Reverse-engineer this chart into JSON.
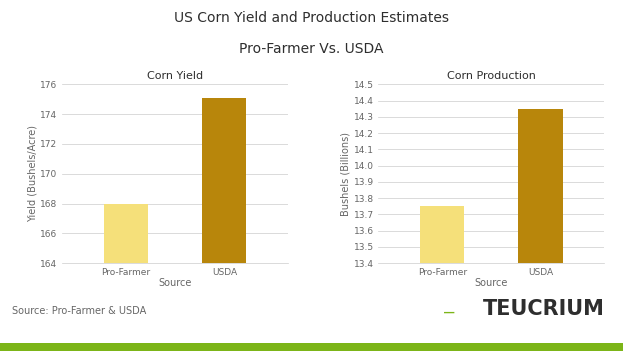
{
  "title_line1": "US Corn Yield and Production Estimates",
  "title_line2": "Pro-Farmer Vs. USDA",
  "title_fontsize": 10,
  "yield_title": "Corn Yield",
  "yield_categories": [
    "Pro-Farmer",
    "USDA"
  ],
  "yield_values": [
    168.0,
    175.1
  ],
  "yield_ylim": [
    164,
    176
  ],
  "yield_yticks": [
    164,
    166,
    168,
    170,
    172,
    174,
    176
  ],
  "yield_ylabel": "Yield (Bushels/Acre)",
  "yield_xlabel": "Source",
  "prod_title": "Corn Production",
  "prod_categories": [
    "Pro-Farmer",
    "USDA"
  ],
  "prod_values": [
    13.75,
    14.35
  ],
  "prod_ylim": [
    13.4,
    14.5
  ],
  "prod_yticks": [
    13.4,
    13.5,
    13.6,
    13.7,
    13.8,
    13.9,
    14.0,
    14.1,
    14.2,
    14.3,
    14.4,
    14.5
  ],
  "prod_ylabel": "Bushels (Billions)",
  "prod_xlabel": "Source",
  "bar_color_profarmer": "#f5e07a",
  "bar_color_usda": "#b8860b",
  "background_color": "#ffffff",
  "grid_color": "#cccccc",
  "source_text": "Source: Pro-Farmer & USDA",
  "teucrium_text": "TEUCRIUM",
  "teucrium_color": "#2e2e2e",
  "teucrium_bar_color": "#7cb518",
  "bottom_bar_color": "#7cb518",
  "text_color": "#666666",
  "tick_fontsize": 6.5,
  "label_fontsize": 7,
  "subtitle_color": "#2e2e2e"
}
